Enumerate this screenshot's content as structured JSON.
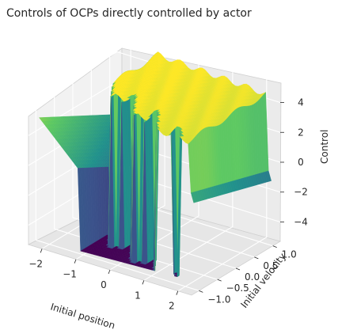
{
  "chart_data": {
    "type": "surface3d",
    "title": "Controls of OCPs directly controlled by actor",
    "xlabel": "Initial position",
    "ylabel": "Initial velocity",
    "zlabel": "Control",
    "xlim": [
      -2.4,
      2.4
    ],
    "ylim": [
      -1.2,
      1.2
    ],
    "zlim": [
      -5.3,
      5.3
    ],
    "x_ticks": [
      "−2",
      "−1",
      "0",
      "1",
      "2"
    ],
    "x_tick_values": [
      -2,
      -1,
      0,
      1,
      2
    ],
    "y_ticks": [
      "−1.0",
      "−0.5",
      "0.0",
      "0.5",
      "1.0"
    ],
    "y_tick_values": [
      -1.0,
      -0.5,
      0.0,
      0.5,
      1.0
    ],
    "z_ticks": [
      "−4",
      "−2",
      "0",
      "2",
      "4"
    ],
    "z_tick_values": [
      -4,
      -2,
      0,
      2,
      4
    ],
    "colormap": "viridis",
    "colormap_stops": [
      "#440154",
      "#3b528b",
      "#21918c",
      "#5ec962",
      "#fde725"
    ],
    "surface": {
      "low_plateau": -5,
      "high_plateau": 5,
      "switching_x_range": [
        -1.1,
        2.2
      ],
      "left_ramp": [
        [
          -2.2,
          1.5
        ],
        [
          -1.1,
          -1.0
        ]
      ],
      "right_ramp": [
        [
          2.2,
          0.5
        ],
        [
          2.4,
          -1.0
        ]
      ]
    },
    "grid": true
  }
}
